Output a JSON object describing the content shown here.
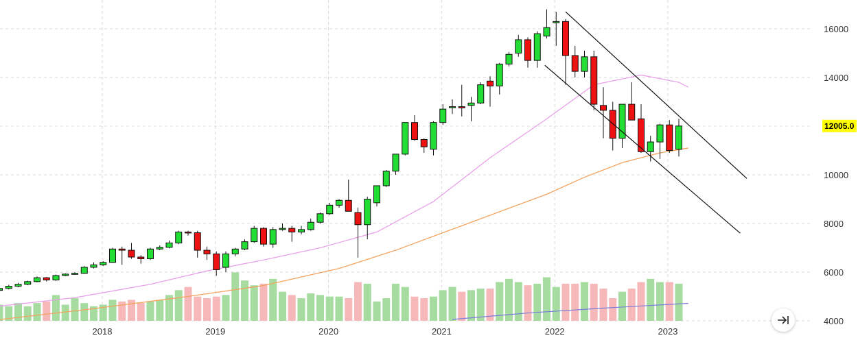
{
  "chart_data": {
    "type": "candlestick",
    "x_tick_labels": [
      "2018",
      "2019",
      "2020",
      "2021",
      "2022",
      "2023"
    ],
    "x_tick_values": [
      2018,
      2019,
      2020,
      2021,
      2022,
      2023
    ],
    "y_tick_values": [
      4000,
      6000,
      8000,
      10000,
      12000,
      14000,
      16000
    ],
    "y_tick_labels": [
      "4000",
      "6000",
      "8000",
      "10000",
      "12000",
      "14000",
      "16000"
    ],
    "ylim": [
      3900,
      16800
    ],
    "last_price_label": "12005.0",
    "last_price": 12005,
    "grid": true,
    "colors": {
      "up": "#22dd33",
      "down": "#ee1111",
      "vol_up": "#a6dca0",
      "vol_down": "#f6b8b8",
      "ma_pink": "#e9a0e9",
      "ma_orange": "#f5a25d",
      "vol_ma": "#7b7bdd",
      "price_tag": "#ffff00"
    },
    "candles": [
      [
        5250,
        5380,
        5200,
        5330
      ],
      [
        5330,
        5480,
        5290,
        5420
      ],
      [
        5420,
        5560,
        5380,
        5500
      ],
      [
        5500,
        5650,
        5460,
        5610
      ],
      [
        5610,
        5820,
        5580,
        5770
      ],
      [
        5770,
        5800,
        5620,
        5680
      ],
      [
        5680,
        5900,
        5640,
        5860
      ],
      [
        5860,
        5950,
        5830,
        5920
      ],
      [
        5920,
        6000,
        5890,
        5950
      ],
      [
        5950,
        6250,
        5930,
        6200
      ],
      [
        6200,
        6400,
        6150,
        6300
      ],
      [
        6300,
        6450,
        6250,
        6400
      ],
      [
        6400,
        7000,
        6380,
        6950
      ],
      [
        6950,
        7050,
        6300,
        6900
      ],
      [
        6900,
        7200,
        6550,
        6620
      ],
      [
        6620,
        6700,
        6350,
        6550
      ],
      [
        6550,
        7000,
        6500,
        6950
      ],
      [
        6950,
        7100,
        6900,
        7020
      ],
      [
        7020,
        7300,
        6980,
        7200
      ],
      [
        7200,
        7700,
        7150,
        7650
      ],
      [
        7650,
        7700,
        7500,
        7620
      ],
      [
        7620,
        7700,
        6600,
        6900
      ],
      [
        6900,
        7050,
        6500,
        6750
      ],
      [
        6750,
        6850,
        5850,
        6100
      ],
      [
        6200,
        6850,
        6000,
        6750
      ],
      [
        6750,
        7000,
        6650,
        6950
      ],
      [
        6950,
        7350,
        6900,
        7250
      ],
      [
        7250,
        7900,
        7200,
        7800
      ],
      [
        7800,
        7850,
        7050,
        7150
      ],
      [
        7150,
        7850,
        7000,
        7750
      ],
      [
        7750,
        8000,
        7700,
        7800
      ],
      [
        7800,
        7900,
        7250,
        7650
      ],
      [
        7650,
        7900,
        7550,
        7750
      ],
      [
        7750,
        8200,
        7700,
        8050
      ],
      [
        8050,
        8450,
        8000,
        8400
      ],
      [
        8400,
        8850,
        8350,
        8750
      ],
      [
        8750,
        9000,
        8650,
        8950
      ],
      [
        8950,
        9800,
        8500,
        8500
      ],
      [
        8450,
        8650,
        6600,
        7950
      ],
      [
        7950,
        9100,
        7350,
        9000
      ],
      [
        8850,
        9550,
        8700,
        9550
      ],
      [
        9550,
        10200,
        9500,
        10150
      ],
      [
        10150,
        10850,
        10000,
        10850
      ],
      [
        10850,
        12150,
        10800,
        12150
      ],
      [
        12150,
        12450,
        11400,
        11450
      ],
      [
        11450,
        11500,
        10900,
        11150
      ],
      [
        11050,
        12200,
        10800,
        12150
      ],
      [
        12150,
        12900,
        12050,
        12700
      ],
      [
        12800,
        13100,
        12500,
        12800
      ],
      [
        12800,
        13700,
        12400,
        12750
      ],
      [
        12850,
        13200,
        12200,
        12950
      ],
      [
        12950,
        13800,
        12900,
        13700
      ],
      [
        13850,
        14050,
        12800,
        13650
      ],
      [
        13650,
        14600,
        13300,
        14550
      ],
      [
        14550,
        15050,
        14450,
        14950
      ],
      [
        15000,
        15750,
        14850,
        15550
      ],
      [
        15550,
        15650,
        14400,
        14700
      ],
      [
        14700,
        15900,
        14400,
        15800
      ],
      [
        15700,
        16800,
        15600,
        16050
      ],
      [
        16250,
        16700,
        15300,
        16300
      ],
      [
        16300,
        16400,
        13700,
        14900
      ],
      [
        14900,
        15300,
        14000,
        14250
      ],
      [
        14250,
        15100,
        14000,
        14850
      ],
      [
        14850,
        15100,
        12650,
        12900
      ],
      [
        12850,
        13600,
        11500,
        12650
      ],
      [
        12650,
        13000,
        11000,
        11500
      ],
      [
        11500,
        12900,
        11100,
        12900
      ],
      [
        12900,
        13800,
        12300,
        12250
      ],
      [
        12300,
        12900,
        10900,
        10950
      ],
      [
        10950,
        11600,
        10550,
        11350
      ],
      [
        11350,
        12100,
        10650,
        12050
      ],
      [
        12050,
        12250,
        10900,
        11000
      ],
      [
        11050,
        12300,
        10750,
        12005
      ]
    ],
    "volume": [
      20,
      18,
      22,
      18,
      22,
      24,
      32,
      20,
      28,
      22,
      18,
      20,
      26,
      24,
      26,
      22,
      24,
      26,
      32,
      38,
      42,
      30,
      28,
      30,
      32,
      60,
      50,
      44,
      46,
      52,
      36,
      32,
      28,
      34,
      32,
      30,
      30,
      28,
      48,
      46,
      24,
      28,
      46,
      42,
      30,
      28,
      30,
      38,
      42,
      36,
      38,
      40,
      40,
      48,
      52,
      48,
      44,
      46,
      54,
      42,
      46,
      46,
      48,
      46,
      40,
      28,
      36,
      40,
      48,
      52,
      48,
      48,
      46
    ],
    "vol_scale_max": 170,
    "ma_pink": [
      [
        0,
        4600
      ],
      [
        8,
        4950
      ],
      [
        16,
        5500
      ],
      [
        22,
        6050
      ],
      [
        28,
        6500
      ],
      [
        34,
        7000
      ],
      [
        40,
        7650
      ],
      [
        46,
        8900
      ],
      [
        52,
        10700
      ],
      [
        58,
        12300
      ],
      [
        63,
        13700
      ],
      [
        68,
        14100
      ],
      [
        72,
        13800
      ],
      [
        73,
        13600
      ]
    ],
    "ma_orange": [
      [
        0,
        4050
      ],
      [
        10,
        4500
      ],
      [
        20,
        5000
      ],
      [
        28,
        5450
      ],
      [
        36,
        6150
      ],
      [
        42,
        6900
      ],
      [
        50,
        8050
      ],
      [
        58,
        9200
      ],
      [
        62,
        9900
      ],
      [
        66,
        10500
      ],
      [
        70,
        10900
      ],
      [
        73,
        11100
      ]
    ],
    "vol_ma": [
      [
        48,
        0
      ],
      [
        56,
        8
      ],
      [
        64,
        14
      ],
      [
        73,
        20
      ]
    ],
    "trendlines": [
      [
        [
          60,
          16700
        ],
        [
          79.2,
          9850
        ]
      ],
      [
        [
          57.8,
          14500
        ],
        [
          78.5,
          7600
        ]
      ]
    ]
  },
  "ui": {
    "scroll_to_latest_icon": "arrow-to-end-icon"
  }
}
